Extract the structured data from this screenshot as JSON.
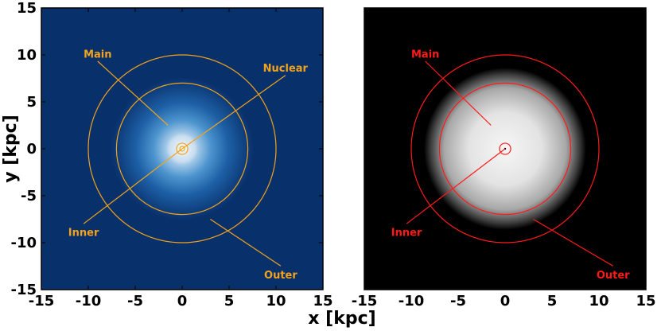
{
  "chart_data": [
    {
      "type": "heatmap",
      "xlabel": "x [kpc]",
      "ylabel": "y [kpc]",
      "xlim": [
        -15,
        15
      ],
      "ylim": [
        -15,
        15
      ],
      "xticks": [
        "-15",
        "-10",
        "-5",
        "0",
        "5",
        "10",
        "15"
      ],
      "yticks": [
        "-15",
        "-10",
        "-5",
        "0",
        "5",
        "10",
        "15"
      ],
      "annotation_color": "#f2a31b",
      "background_color": "#08306b",
      "rings_kpc": [
        0.6,
        7.0,
        10.0
      ],
      "annotations": [
        {
          "label": "Main",
          "text_at": [
            -9,
            10
          ],
          "points_to": [
            -1.5,
            2.5
          ]
        },
        {
          "label": "Nuclear",
          "text_at": [
            11,
            8.5
          ],
          "points_to": [
            0,
            0
          ]
        },
        {
          "label": "Inner",
          "text_at": [
            -10.5,
            -9
          ],
          "points_to": [
            0,
            0
          ]
        },
        {
          "label": "Outer",
          "text_at": [
            10.5,
            -13.5
          ],
          "points_to": [
            3,
            -7.5
          ]
        }
      ]
    },
    {
      "type": "heatmap",
      "xlabel": "",
      "ylabel": "",
      "xlim": [
        -15,
        15
      ],
      "ylim": [
        -15,
        15
      ],
      "xticks": [
        "-15",
        "-10",
        "-5",
        "0",
        "5",
        "10",
        "15"
      ],
      "annotation_color": "#ff1a1a",
      "background_color": "#000000",
      "rings_kpc": [
        0.6,
        7.0,
        10.0
      ],
      "annotations": [
        {
          "label": "Main",
          "text_at": [
            -8.5,
            10
          ],
          "points_to": [
            -1.5,
            2.5
          ]
        },
        {
          "label": "Inner",
          "text_at": [
            -10.5,
            -9
          ],
          "points_to": [
            0,
            0
          ]
        },
        {
          "label": "Outer",
          "text_at": [
            11.5,
            -13.5
          ],
          "points_to": [
            3,
            -7.5
          ]
        }
      ]
    }
  ]
}
